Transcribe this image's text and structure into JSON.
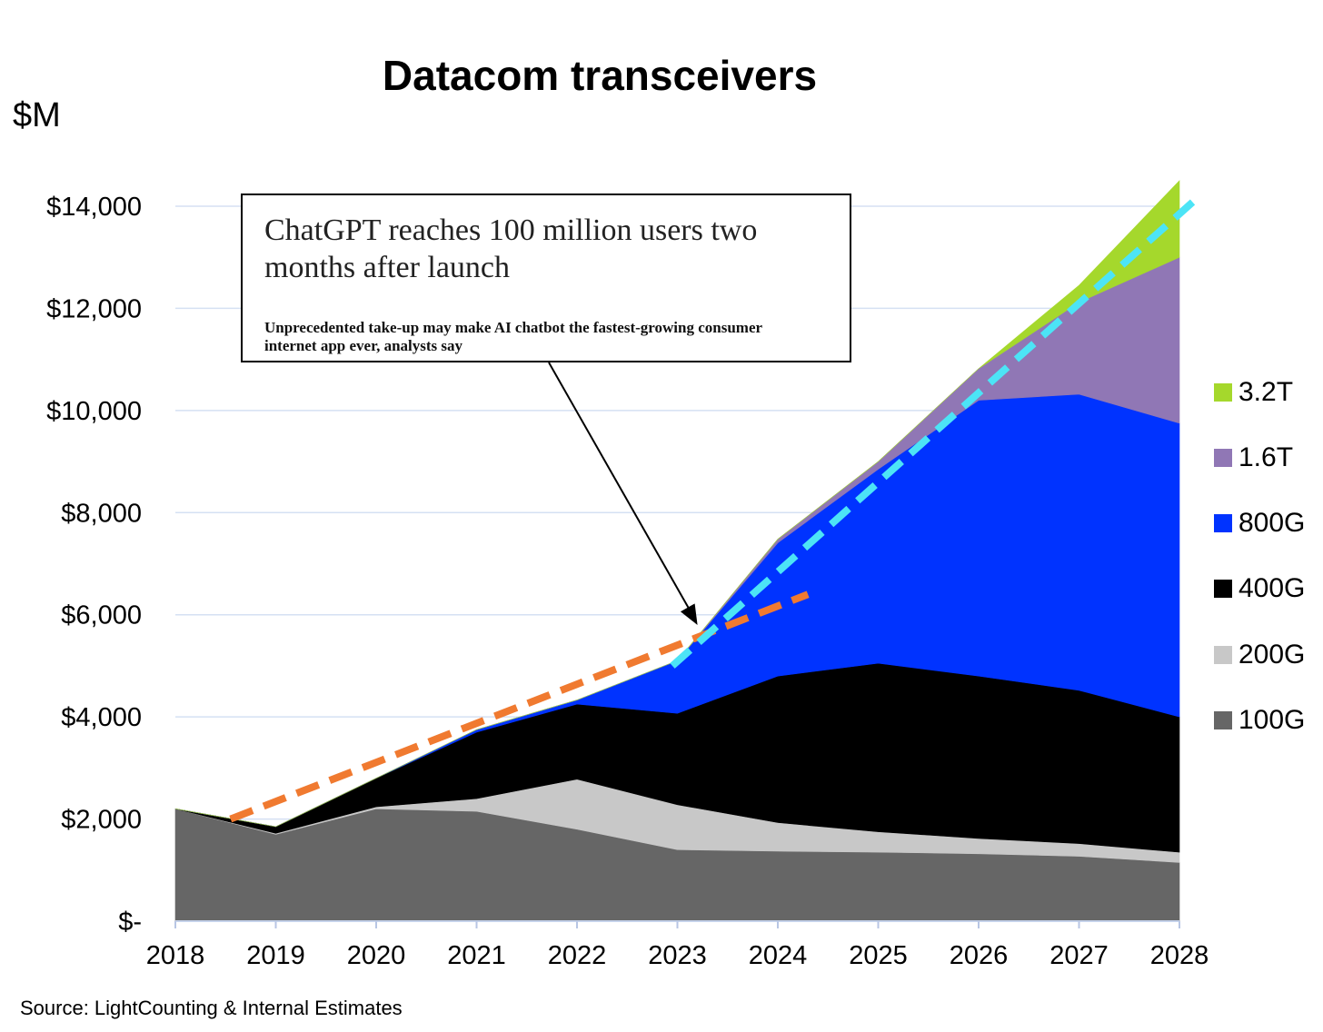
{
  "unit_label": "$M",
  "source": "Source: LightCounting & Internal Estimates",
  "callout": {
    "headline": "ChatGPT reaches 100 million users two months after launch",
    "subheadline": "Unprecedented take-up may make AI chatbot the fastest-growing consumer internet app ever, analysts say"
  },
  "chart_data": {
    "type": "area",
    "stacked": true,
    "title": "Datacom transceivers",
    "xlabel": "",
    "ylabel": "$M",
    "x": [
      2018,
      2019,
      2020,
      2021,
      2022,
      2023,
      2024,
      2025,
      2026,
      2027,
      2028
    ],
    "ylim": [
      0,
      14000
    ],
    "yticks": [
      0,
      2000,
      4000,
      6000,
      8000,
      10000,
      12000,
      14000
    ],
    "ytick_labels": [
      "$-",
      "$2,000",
      "$4,000",
      "$6,000",
      "$8,000",
      "$10,000",
      "$12,000",
      "$14,000"
    ],
    "grid": "horizontal",
    "legend_position": "right",
    "series": [
      {
        "name": "100G",
        "color": "#666666",
        "values": [
          2200,
          1700,
          2200,
          2150,
          1800,
          1400,
          1370,
          1350,
          1320,
          1270,
          1150
        ]
      },
      {
        "name": "200G",
        "color": "#c8c8c8",
        "values": [
          0,
          20,
          40,
          250,
          980,
          880,
          560,
          400,
          300,
          250,
          200
        ]
      },
      {
        "name": "400G",
        "color": "#000000",
        "values": [
          0,
          130,
          560,
          1300,
          1470,
          1790,
          2870,
          3300,
          3180,
          3000,
          2650
        ]
      },
      {
        "name": "800G",
        "color": "#0033ff",
        "values": [
          0,
          0,
          0,
          50,
          80,
          1030,
          2610,
          3800,
          5400,
          5800,
          5750
        ]
      },
      {
        "name": "1.6T",
        "color": "#9077b5",
        "values": [
          0,
          0,
          0,
          0,
          0,
          0,
          70,
          150,
          620,
          1800,
          3250
        ]
      },
      {
        "name": "3.2T",
        "color": "#a5d82c",
        "values": [
          0,
          0,
          0,
          0,
          0,
          0,
          0,
          0,
          0,
          330,
          1500
        ]
      }
    ],
    "trend_lines": [
      {
        "color": "#f07a30",
        "style": "dashed",
        "points": [
          [
            2018.55,
            2000
          ],
          [
            2024.3,
            6400
          ]
        ]
      },
      {
        "color": "#4ce4f6",
        "style": "dashed",
        "points": [
          [
            2022.95,
            5000
          ],
          [
            2028.2,
            14200
          ]
        ]
      }
    ],
    "annotation_arrow_target": [
      2023.2,
      5800
    ]
  }
}
